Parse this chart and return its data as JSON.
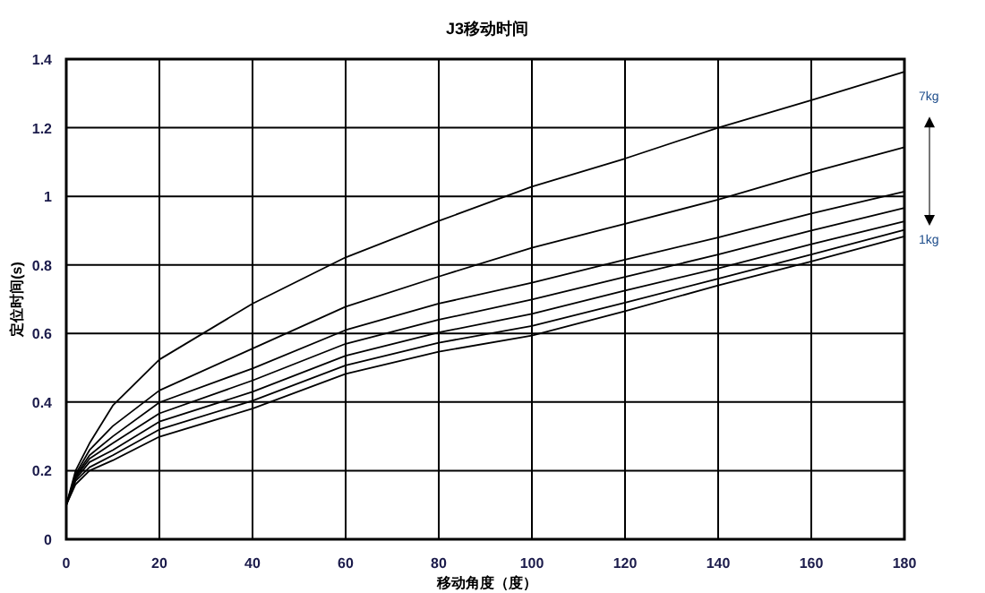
{
  "chart_data": {
    "type": "line",
    "title": "J3移动时间",
    "xlabel": "移动角度（度）",
    "ylabel": "定位时间(s)",
    "x": [
      0,
      2,
      5,
      10,
      20,
      40,
      60,
      80,
      100,
      120,
      140,
      160,
      180
    ],
    "series": [
      {
        "color": "#000000",
        "values": [
          0.1,
          0.2,
          0.28,
          0.39,
          0.524,
          0.687,
          0.822,
          0.928,
          1.028,
          1.11,
          1.2,
          1.28,
          1.363
        ]
      },
      {
        "color": "#000000",
        "values": [
          0.1,
          0.19,
          0.26,
          0.33,
          0.434,
          0.556,
          0.678,
          0.766,
          0.85,
          0.92,
          0.99,
          1.07,
          1.143
        ]
      },
      {
        "color": "#000000",
        "values": [
          0.1,
          0.185,
          0.245,
          0.3,
          0.399,
          0.498,
          0.61,
          0.687,
          0.748,
          0.815,
          0.88,
          0.95,
          1.014
        ]
      },
      {
        "color": "#000000",
        "values": [
          0.1,
          0.18,
          0.235,
          0.28,
          0.367,
          0.463,
          0.57,
          0.64,
          0.699,
          0.765,
          0.83,
          0.9,
          0.966
        ]
      },
      {
        "color": "#000000",
        "values": [
          0.1,
          0.175,
          0.225,
          0.26,
          0.343,
          0.43,
          0.535,
          0.603,
          0.657,
          0.725,
          0.79,
          0.86,
          0.927
        ]
      },
      {
        "color": "#000000",
        "values": [
          0.1,
          0.17,
          0.21,
          0.245,
          0.32,
          0.404,
          0.507,
          0.573,
          0.622,
          0.69,
          0.76,
          0.83,
          0.902
        ]
      },
      {
        "color": "#000000",
        "values": [
          0.1,
          0.16,
          0.2,
          0.23,
          0.299,
          0.381,
          0.482,
          0.547,
          0.594,
          0.665,
          0.74,
          0.81,
          0.883
        ]
      }
    ],
    "xlim": [
      0,
      180
    ],
    "ylim": [
      0,
      1.4
    ],
    "xticks": [
      0,
      20,
      40,
      60,
      80,
      100,
      120,
      140,
      160,
      180
    ],
    "yticks": [
      0,
      0.2,
      0.4,
      0.6,
      0.8,
      1,
      1.2,
      1.4
    ],
    "grid": true,
    "annotations": [
      {
        "text": "7kg",
        "x": 180,
        "y": 1.363
      },
      {
        "text": "1kg",
        "x": 180,
        "y": 0.883
      }
    ]
  }
}
